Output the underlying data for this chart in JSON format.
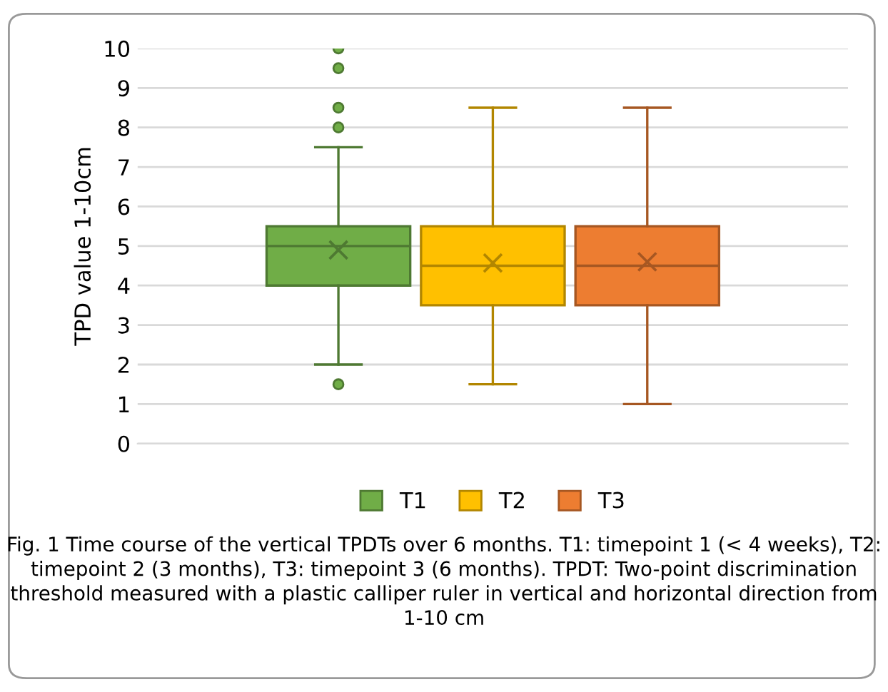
{
  "chart_data": {
    "type": "box",
    "ylabel": "TPD value 1-10cm",
    "categories": [
      null
    ],
    "ylim": [
      0,
      10
    ],
    "yticks": [
      0,
      1,
      2,
      3,
      4,
      5,
      6,
      7,
      8,
      9,
      10
    ],
    "grid": "y",
    "legend": "bottom",
    "marker": "cross",
    "series": [
      {
        "name": "T1",
        "color": "#70ad47",
        "boxes": [
          {
            "low": 2,
            "q1": 4,
            "median": 5,
            "q3": 5.5,
            "high": 7.5,
            "mean": 4.9,
            "outliers": [
              1.5,
              8,
              8.5,
              9.5,
              10
            ]
          }
        ]
      },
      {
        "name": "T2",
        "color": "#ffc000",
        "boxes": [
          {
            "low": 1.5,
            "q1": 3.5,
            "median": 4.5,
            "q3": 5.5,
            "high": 8.5,
            "mean": 4.57
          }
        ]
      },
      {
        "name": "T3",
        "color": "#ed7d31",
        "boxes": [
          {
            "low": 1,
            "q1": 3.5,
            "median": 4.5,
            "q3": 5.5,
            "high": 8.5,
            "mean": 4.6
          }
        ]
      }
    ],
    "annotations": [
      "Fig. 1 Time course of the vertical TPDTs over 6 months. T1: timepoint 1 (< 4 weeks), T2: timepoint 2 (3 months), T3: timepoint 3 (6 months). TPDT: Two-point discrimination threshold measured with a plastic calliper ruler in vertical and horizontal direction from 1-10 cm"
    ]
  }
}
